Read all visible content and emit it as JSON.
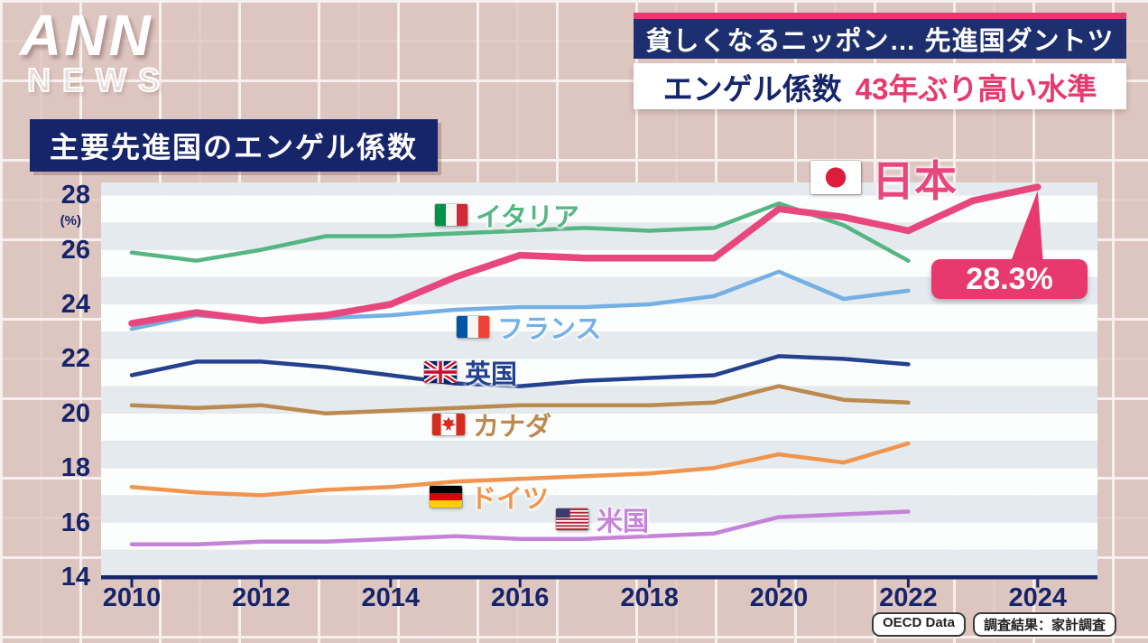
{
  "logo": {
    "line1": "ANN",
    "line2": "NEWS"
  },
  "headline": {
    "top_banner": "貧しくなるニッポン… 先進国ダントツ",
    "sub_banner_navy": "エンゲル係数",
    "sub_banner_pink": "43年ぶり高い水準"
  },
  "chart_title": "主要先進国のエンゲル係数",
  "colors": {
    "navy": "#1d2f6e",
    "axis-navy": "#16246a",
    "pink": "#e8396f",
    "stripe-dark": "#e4eaee",
    "stripe-light": "#fcfdfd"
  },
  "chart_data": {
    "type": "line",
    "title": "主要先進国のエンゲル係数",
    "unit_label": "(%)",
    "ylim": [
      14,
      28
    ],
    "yticks": [
      14,
      16,
      18,
      20,
      22,
      24,
      26,
      28
    ],
    "x": [
      2010,
      2011,
      2012,
      2013,
      2014,
      2015,
      2016,
      2017,
      2018,
      2019,
      2020,
      2021,
      2022,
      2023,
      2024
    ],
    "xticks": [
      2010,
      2012,
      2014,
      2016,
      2018,
      2020,
      2022,
      2024
    ],
    "grid": "striped-horizontal-bands",
    "legend_position": "inline-labels-on-plot",
    "series": [
      {
        "name": "日本",
        "flag": "japan-flag",
        "color": "#e8477e",
        "line_width": 7.5,
        "values": [
          23.3,
          23.7,
          23.4,
          23.6,
          24.0,
          25.0,
          25.8,
          25.7,
          25.7,
          25.7,
          27.5,
          27.2,
          26.7,
          27.8,
          28.3
        ]
      },
      {
        "name": "イタリア",
        "flag": "italy-flag",
        "color": "#55b583",
        "line_width": 4.5,
        "values": [
          25.9,
          25.6,
          26.0,
          26.5,
          26.5,
          26.6,
          26.7,
          26.8,
          26.7,
          26.8,
          27.7,
          26.9,
          25.6,
          null,
          null
        ]
      },
      {
        "name": "フランス",
        "flag": "france-flag",
        "color": "#74b0e4",
        "line_width": 4.5,
        "values": [
          23.1,
          23.6,
          23.4,
          23.5,
          23.6,
          23.8,
          23.9,
          23.9,
          24.0,
          24.3,
          25.2,
          24.2,
          24.5,
          null,
          null
        ]
      },
      {
        "name": "英国",
        "flag": "uk-flag",
        "color": "#24418f",
        "line_width": 4.5,
        "values": [
          21.4,
          21.9,
          21.9,
          21.7,
          21.4,
          21.1,
          21.0,
          21.2,
          21.3,
          21.4,
          22.1,
          22.0,
          21.8,
          null,
          null
        ]
      },
      {
        "name": "カナダ",
        "flag": "canada-flag",
        "color": "#bb8a4e",
        "line_width": 4.5,
        "values": [
          20.3,
          20.2,
          20.3,
          20.0,
          20.1,
          20.2,
          20.3,
          20.3,
          20.3,
          20.4,
          21.0,
          20.5,
          20.4,
          null,
          null
        ]
      },
      {
        "name": "ドイツ",
        "flag": "germany-flag",
        "color": "#f0954d",
        "line_width": 4.5,
        "values": [
          17.3,
          17.1,
          17.0,
          17.2,
          17.3,
          17.5,
          17.6,
          17.7,
          17.8,
          18.0,
          18.5,
          18.2,
          18.9,
          null,
          null
        ]
      },
      {
        "name": "米国",
        "flag": "usa-flag",
        "color": "#c583d8",
        "line_width": 4.5,
        "values": [
          15.2,
          15.2,
          15.3,
          15.3,
          15.4,
          15.5,
          15.4,
          15.4,
          15.5,
          15.6,
          16.2,
          16.3,
          16.4,
          null,
          null
        ]
      }
    ],
    "callout": {
      "text": "28.3%",
      "year": 2024,
      "value": 28.3,
      "series": "日本"
    }
  },
  "source": {
    "items": [
      "OECD Data",
      "調査結果：家計調査"
    ]
  }
}
